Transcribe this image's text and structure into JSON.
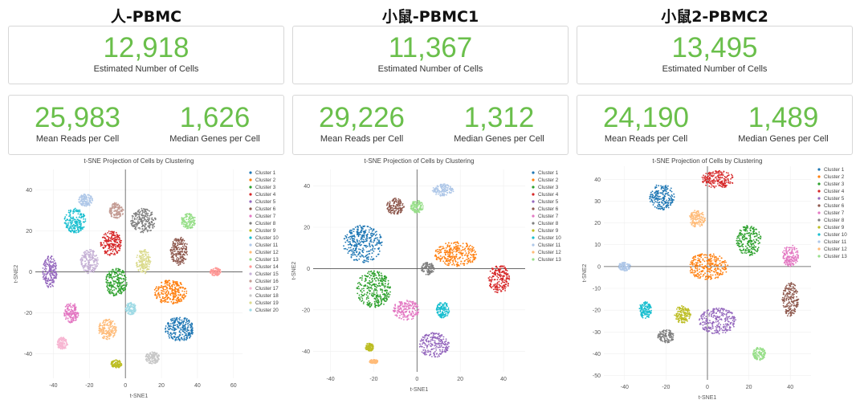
{
  "palette": [
    "#1f77b4",
    "#ff7f0e",
    "#2ca02c",
    "#d62728",
    "#9467bd",
    "#8c564b",
    "#e377c2",
    "#7f7f7f",
    "#bcbd22",
    "#17becf",
    "#aec7e8",
    "#ffbb78",
    "#98df8a",
    "#ff9896",
    "#c5b0d5",
    "#c49c94",
    "#f7b6d2",
    "#c7c7c7",
    "#dbdb8d",
    "#9edae5"
  ],
  "panels": [
    {
      "title": "人-PBMC",
      "cells": {
        "value": "12,918",
        "label": "Estimated Number of Cells"
      },
      "reads": {
        "value": "25,983",
        "label": "Mean Reads per Cell"
      },
      "genes": {
        "value": "1,626",
        "label": "Median Genes per Cell"
      }
    },
    {
      "title": "小鼠-PBMC1",
      "cells": {
        "value": "11,367",
        "label": "Estimated Number of Cells"
      },
      "reads": {
        "value": "29,226",
        "label": "Mean Reads per Cell"
      },
      "genes": {
        "value": "1,312",
        "label": "Median Genes per Cell"
      }
    },
    {
      "title": "小鼠2-PBMC2",
      "cells": {
        "value": "13,495",
        "label": "Estimated Number of Cells"
      },
      "reads": {
        "value": "24,190",
        "label": "Mean Reads per Cell"
      },
      "genes": {
        "value": "1,489",
        "label": "Median Genes per Cell"
      }
    }
  ],
  "chart_data": [
    {
      "type": "scatter",
      "title": "t-SNE Projection of Cells by Clustering",
      "xlabel": "t-SNE1",
      "ylabel": "t-SNE2",
      "xlim": [
        -50,
        65
      ],
      "ylim": [
        -52,
        50
      ],
      "xticks": [
        -40,
        -20,
        0,
        20,
        40,
        60
      ],
      "yticks": [
        -40,
        -20,
        0,
        20,
        40
      ],
      "legend": [
        "Cluster 1",
        "Cluster 2",
        "Cluster 3",
        "Cluster 4",
        "Cluster 5",
        "Cluster 6",
        "Cluster 7",
        "Cluster 8",
        "Cluster 9",
        "Cluster 10",
        "Cluster 11",
        "Cluster 12",
        "Cluster 13",
        "Cluster 14",
        "Cluster 15",
        "Cluster 16",
        "Cluster 17",
        "Cluster 18",
        "Cluster 19",
        "Cluster 20"
      ],
      "legend_position": "right",
      "clusters": [
        {
          "cluster": 1,
          "center": [
            30,
            -28
          ],
          "spread": [
            8,
            6
          ]
        },
        {
          "cluster": 2,
          "center": [
            25,
            -10
          ],
          "spread": [
            9,
            6
          ]
        },
        {
          "cluster": 3,
          "center": [
            -5,
            -5
          ],
          "spread": [
            6,
            7
          ]
        },
        {
          "cluster": 4,
          "center": [
            -8,
            14
          ],
          "spread": [
            6,
            6
          ]
        },
        {
          "cluster": 5,
          "center": [
            -42,
            0
          ],
          "spread": [
            4,
            8
          ]
        },
        {
          "cluster": 6,
          "center": [
            30,
            10
          ],
          "spread": [
            5,
            7
          ]
        },
        {
          "cluster": 7,
          "center": [
            -30,
            -20
          ],
          "spread": [
            4,
            5
          ]
        },
        {
          "cluster": 8,
          "center": [
            10,
            25
          ],
          "spread": [
            7,
            6
          ]
        },
        {
          "cluster": 9,
          "center": [
            -5,
            -45
          ],
          "spread": [
            3,
            2
          ]
        },
        {
          "cluster": 10,
          "center": [
            -28,
            25
          ],
          "spread": [
            6,
            6
          ]
        },
        {
          "cluster": 11,
          "center": [
            -22,
            35
          ],
          "spread": [
            4,
            3
          ]
        },
        {
          "cluster": 12,
          "center": [
            -10,
            -28
          ],
          "spread": [
            5,
            5
          ]
        },
        {
          "cluster": 13,
          "center": [
            35,
            25
          ],
          "spread": [
            4,
            4
          ]
        },
        {
          "cluster": 14,
          "center": [
            50,
            0
          ],
          "spread": [
            3,
            2
          ]
        },
        {
          "cluster": 15,
          "center": [
            -20,
            5
          ],
          "spread": [
            5,
            6
          ]
        },
        {
          "cluster": 16,
          "center": [
            -5,
            30
          ],
          "spread": [
            4,
            4
          ]
        },
        {
          "cluster": 17,
          "center": [
            -35,
            -35
          ],
          "spread": [
            3,
            3
          ]
        },
        {
          "cluster": 18,
          "center": [
            15,
            -42
          ],
          "spread": [
            4,
            3
          ]
        },
        {
          "cluster": 19,
          "center": [
            10,
            5
          ],
          "spread": [
            4,
            6
          ]
        },
        {
          "cluster": 20,
          "center": [
            3,
            -18
          ],
          "spread": [
            3,
            3
          ]
        }
      ]
    },
    {
      "type": "scatter",
      "title": "t-SNE Projection of Cells by Clustering",
      "xlabel": "t-SNE1",
      "ylabel": "t-SNE2",
      "xlim": [
        -48,
        50
      ],
      "ylim": [
        -50,
        48
      ],
      "xticks": [
        -40,
        -20,
        0,
        20,
        40
      ],
      "yticks": [
        -40,
        -20,
        0,
        20,
        40
      ],
      "legend": [
        "Cluster 1",
        "Cluster 2",
        "Cluster 3",
        "Cluster 4",
        "Cluster 5",
        "Cluster 6",
        "Cluster 7",
        "Cluster 8",
        "Cluster 9",
        "Cluster 10",
        "Cluster 11",
        "Cluster 12",
        "Cluster 13"
      ],
      "legend_position": "right",
      "clusters": [
        {
          "cluster": 1,
          "center": [
            -25,
            12
          ],
          "spread": [
            9,
            9
          ]
        },
        {
          "cluster": 2,
          "center": [
            18,
            7
          ],
          "spread": [
            10,
            6
          ]
        },
        {
          "cluster": 3,
          "center": [
            -20,
            -10
          ],
          "spread": [
            8,
            9
          ]
        },
        {
          "cluster": 4,
          "center": [
            38,
            -5
          ],
          "spread": [
            5,
            7
          ]
        },
        {
          "cluster": 5,
          "center": [
            8,
            -37
          ],
          "spread": [
            7,
            6
          ]
        },
        {
          "cluster": 6,
          "center": [
            -10,
            30
          ],
          "spread": [
            4,
            4
          ]
        },
        {
          "cluster": 7,
          "center": [
            -5,
            -20
          ],
          "spread": [
            6,
            5
          ]
        },
        {
          "cluster": 8,
          "center": [
            5,
            0
          ],
          "spread": [
            3,
            3
          ]
        },
        {
          "cluster": 9,
          "center": [
            -22,
            -38
          ],
          "spread": [
            2,
            2
          ]
        },
        {
          "cluster": 10,
          "center": [
            12,
            -20
          ],
          "spread": [
            3,
            4
          ]
        },
        {
          "cluster": 11,
          "center": [
            12,
            38
          ],
          "spread": [
            5,
            3
          ]
        },
        {
          "cluster": 12,
          "center": [
            -20,
            -45
          ],
          "spread": [
            2,
            1
          ]
        },
        {
          "cluster": 13,
          "center": [
            0,
            30
          ],
          "spread": [
            3,
            3
          ]
        }
      ]
    },
    {
      "type": "scatter",
      "title": "t-SNE Projection of Cells by Clustering",
      "xlabel": "t-SNE1",
      "ylabel": "t-SNE2",
      "xlim": [
        -50,
        50
      ],
      "ylim": [
        -52,
        46
      ],
      "xticks": [
        -40,
        -20,
        0,
        20,
        40
      ],
      "yticks": [
        -50,
        -40,
        -30,
        -20,
        -10,
        0,
        10,
        20,
        30,
        40
      ],
      "legend": [
        "Cluster 1",
        "Cluster 2",
        "Cluster 3",
        "Cluster 4",
        "Cluster 5",
        "Cluster 6",
        "Cluster 7",
        "Cluster 8",
        "Cluster 9",
        "Cluster 10",
        "Cluster 11",
        "Cluster 12",
        "Cluster 13"
      ],
      "legend_position": "right",
      "clusters": [
        {
          "cluster": 1,
          "center": [
            -22,
            32
          ],
          "spread": [
            6,
            6
          ]
        },
        {
          "cluster": 2,
          "center": [
            0,
            0
          ],
          "spread": [
            10,
            6
          ]
        },
        {
          "cluster": 3,
          "center": [
            20,
            12
          ],
          "spread": [
            6,
            7
          ]
        },
        {
          "cluster": 4,
          "center": [
            5,
            40
          ],
          "spread": [
            8,
            4
          ]
        },
        {
          "cluster": 5,
          "center": [
            5,
            -25
          ],
          "spread": [
            9,
            6
          ]
        },
        {
          "cluster": 6,
          "center": [
            40,
            -15
          ],
          "spread": [
            4,
            8
          ]
        },
        {
          "cluster": 7,
          "center": [
            40,
            5
          ],
          "spread": [
            4,
            5
          ]
        },
        {
          "cluster": 8,
          "center": [
            -20,
            -32
          ],
          "spread": [
            4,
            3
          ]
        },
        {
          "cluster": 9,
          "center": [
            -12,
            -22
          ],
          "spread": [
            4,
            4
          ]
        },
        {
          "cluster": 10,
          "center": [
            -30,
            -20
          ],
          "spread": [
            3,
            4
          ]
        },
        {
          "cluster": 11,
          "center": [
            -40,
            0
          ],
          "spread": [
            3,
            2
          ]
        },
        {
          "cluster": 12,
          "center": [
            -5,
            22
          ],
          "spread": [
            4,
            4
          ]
        },
        {
          "cluster": 13,
          "center": [
            25,
            -40
          ],
          "spread": [
            3,
            3
          ]
        }
      ]
    }
  ]
}
